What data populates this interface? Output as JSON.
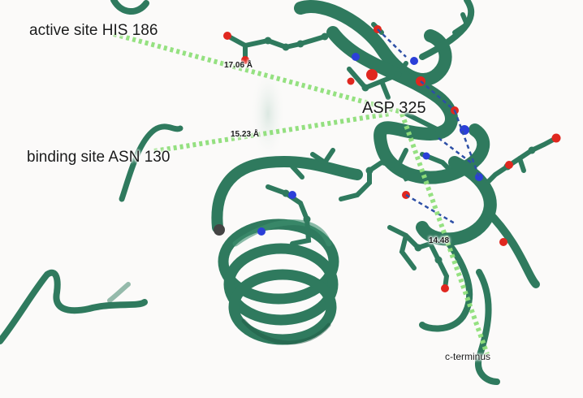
{
  "colors": {
    "ribbon": "#2f7a5e",
    "ribbon_dark": "#1f5a44",
    "carbon": "#2f7a5e",
    "oxygen": "#e0271f",
    "nitrogen": "#2b3fd8",
    "hbond": "#2d4fa6",
    "distance_line": "#8fdf7a",
    "background": "#fbfaf9"
  },
  "labels": {
    "active_site": "active site HIS 186",
    "binding_site": "binding site ASN 130",
    "center_residue": "ASP 325",
    "c_terminus": "c-terminus"
  },
  "distances": {
    "to_active_site": "17.06 Å",
    "to_binding_site": "15.23 Å",
    "to_c_terminus": "14.48"
  },
  "icons": [
    "protein-structure-3d-view"
  ]
}
